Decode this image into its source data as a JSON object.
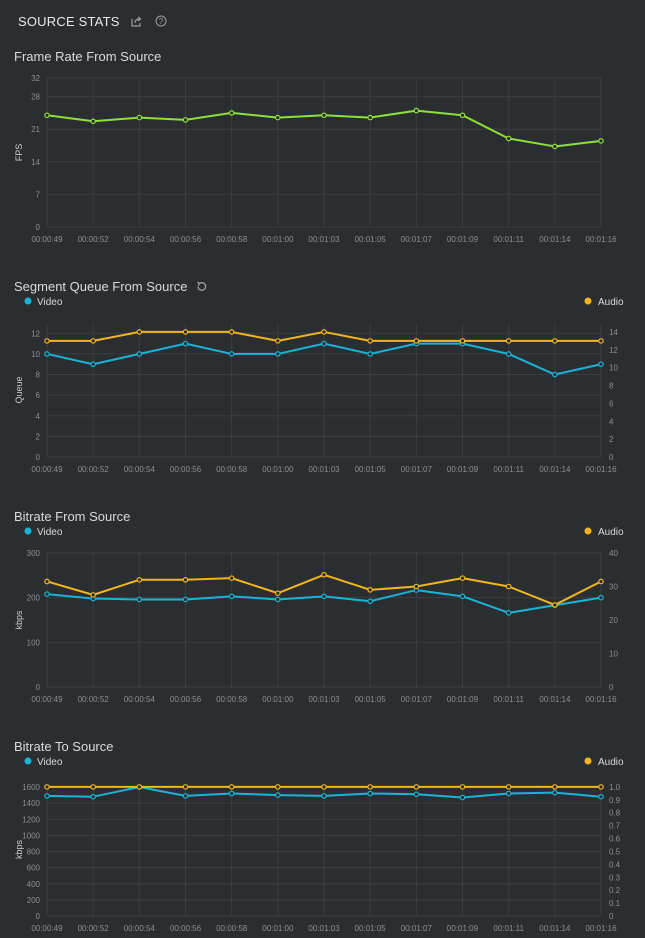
{
  "header": {
    "title": "SOURCE STATS"
  },
  "colors": {
    "bg": "#2b2e31",
    "grid": "#3a3e42",
    "green": "#8ee03a",
    "cyan": "#1ab3d6",
    "yellow": "#f2b51d"
  },
  "chart_data": [
    {
      "type": "line",
      "title": "Frame Rate From Source",
      "ylabel": "FPS",
      "x": [
        "00:00:49",
        "00:00:52",
        "00:00:54",
        "00:00:56",
        "00:00:58",
        "00:01:00",
        "00:01:03",
        "00:01:05",
        "00:01:07",
        "00:01:09",
        "00:01:11",
        "00:01:14",
        "00:01:16"
      ],
      "yticks": [
        0,
        7,
        14,
        21,
        28,
        32
      ],
      "ylim": [
        0,
        32
      ],
      "series": [
        {
          "values": [
            24,
            22.7,
            23.5,
            23,
            24.5,
            23.5,
            24,
            23.5,
            25,
            24,
            19,
            17.3,
            18.5
          ],
          "color": "#8ee03a"
        }
      ]
    },
    {
      "type": "line",
      "title": "Segment Queue From Source",
      "ylabel": "Queue",
      "x": [
        "00:00:49",
        "00:00:52",
        "00:00:54",
        "00:00:56",
        "00:00:58",
        "00:01:00",
        "00:01:03",
        "00:01:05",
        "00:01:07",
        "00:01:09",
        "00:01:11",
        "00:01:14",
        "00:01:16"
      ],
      "legend": [
        "Video",
        "Audio"
      ],
      "yticks": [
        0,
        2,
        4,
        6,
        8,
        10,
        12
      ],
      "ylim": [
        0,
        13
      ],
      "y2ticks": [
        0,
        2,
        4,
        6,
        8,
        10,
        12,
        14
      ],
      "y2lim": [
        0,
        15
      ],
      "series": [
        {
          "name": "Video",
          "axis": "left",
          "values": [
            10,
            9,
            10,
            11,
            10,
            10,
            11,
            10,
            11,
            11,
            10,
            8,
            9
          ],
          "color": "#1ab3d6"
        },
        {
          "name": "Audio",
          "axis": "right",
          "values": [
            13,
            13,
            14,
            14,
            14,
            13,
            14,
            13,
            13,
            13,
            13,
            13,
            13
          ],
          "color": "#f2b51d"
        }
      ]
    },
    {
      "type": "line",
      "title": "Bitrate From Source",
      "ylabel": "kbps",
      "x": [
        "00:00:49",
        "00:00:52",
        "00:00:54",
        "00:00:56",
        "00:00:58",
        "00:01:00",
        "00:01:03",
        "00:01:05",
        "00:01:07",
        "00:01:09",
        "00:01:11",
        "00:01:14",
        "00:01:16"
      ],
      "legend": [
        "Video",
        "Audio"
      ],
      "yticks": [
        0,
        100,
        200,
        300
      ],
      "ylim": [
        0,
        300
      ],
      "y2ticks": [
        0,
        10,
        20,
        30,
        40
      ],
      "y2lim": [
        0,
        40
      ],
      "series": [
        {
          "name": "Video",
          "axis": "left",
          "values": [
            208,
            198,
            196,
            196,
            203,
            196,
            203,
            192,
            217,
            203,
            166,
            183,
            200
          ],
          "color": "#1ab3d6"
        },
        {
          "name": "Audio",
          "axis": "right",
          "values": [
            31.5,
            27.5,
            32,
            32,
            32.5,
            28,
            33.5,
            29,
            30,
            32.5,
            30,
            24.5,
            31.5
          ],
          "color": "#f2b51d"
        }
      ]
    },
    {
      "type": "line",
      "title": "Bitrate To Source",
      "ylabel": "kbps",
      "x": [
        "00:00:49",
        "00:00:52",
        "00:00:54",
        "00:00:56",
        "00:00:58",
        "00:01:00",
        "00:01:03",
        "00:01:05",
        "00:01:07",
        "00:01:09",
        "00:01:11",
        "00:01:14",
        "00:01:16"
      ],
      "legend": [
        "Video",
        "Audio"
      ],
      "yticks": [
        0,
        200,
        400,
        600,
        800,
        1000,
        1200,
        1400,
        1600
      ],
      "ylim": [
        0,
        1650
      ],
      "y2ticks": [
        "0",
        "0.1",
        "0.2",
        "0.3",
        "0.4",
        "0.5",
        "0.6",
        "0.7",
        "0.8",
        "0.9",
        "1.0"
      ],
      "y2lim": [
        0,
        1.03
      ],
      "series": [
        {
          "name": "Video",
          "axis": "left",
          "values": [
            1490,
            1480,
            1600,
            1490,
            1520,
            1500,
            1490,
            1520,
            1510,
            1470,
            1520,
            1530,
            1480
          ],
          "color": "#1ab3d6"
        },
        {
          "name": "Audio",
          "axis": "right",
          "values": [
            1,
            1,
            1,
            1,
            1,
            1,
            1,
            1,
            1,
            1,
            1,
            1,
            1
          ],
          "color": "#f2b51d"
        }
      ]
    }
  ]
}
